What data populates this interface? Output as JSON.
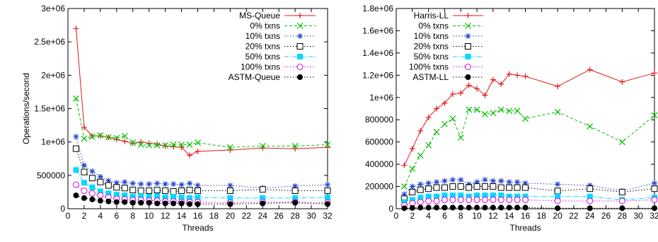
{
  "chart_data": [
    {
      "type": "line",
      "xlabel": "Threads",
      "ylabel": "Operations/second",
      "xlim": [
        0,
        32
      ],
      "ylim": [
        0,
        3000000
      ],
      "x_ticks": [
        "0",
        "2",
        "4",
        "6",
        "8",
        "10",
        "12",
        "14",
        "16",
        "18",
        "20",
        "22",
        "24",
        "26",
        "28",
        "30",
        "32"
      ],
      "y_ticks": [
        "0",
        "500000",
        "1e+06",
        "1.5e+06",
        "2e+06",
        "2.5e+06",
        "3e+06"
      ],
      "legend_position": "top-right",
      "grid": false,
      "x": [
        1,
        2,
        3,
        4,
        5,
        6,
        7,
        8,
        9,
        10,
        11,
        12,
        13,
        14,
        15,
        16,
        20,
        24,
        28,
        32
      ],
      "series": [
        {
          "name": "MS-Queue",
          "color": "#e41a1c",
          "marker": "plus",
          "dash": "solid",
          "values": [
            2700000,
            1220000,
            1090000,
            1090000,
            1070000,
            1040000,
            1010000,
            980000,
            1000000,
            980000,
            970000,
            940000,
            930000,
            920000,
            800000,
            860000,
            880000,
            910000,
            900000,
            920000
          ]
        },
        {
          "name": "0% txns",
          "color": "#00c000",
          "marker": "cross",
          "dash": "dashed",
          "values": [
            1650000,
            1050000,
            1080000,
            1100000,
            1070000,
            1060000,
            1090000,
            990000,
            960000,
            950000,
            950000,
            950000,
            960000,
            960000,
            960000,
            990000,
            920000,
            940000,
            940000,
            960000
          ]
        },
        {
          "name": "10% txns",
          "color": "#1f3fd0",
          "marker": "star",
          "dash": "dotted",
          "values": [
            1080000,
            650000,
            560000,
            480000,
            420000,
            390000,
            400000,
            380000,
            370000,
            370000,
            380000,
            370000,
            370000,
            360000,
            380000,
            350000,
            350000,
            310000,
            340000,
            360000
          ]
        },
        {
          "name": "20% txns",
          "color": "#000000",
          "marker": "square-open",
          "dash": "dotted",
          "values": [
            900000,
            550000,
            460000,
            400000,
            350000,
            320000,
            310000,
            280000,
            270000,
            270000,
            280000,
            270000,
            260000,
            270000,
            280000,
            270000,
            270000,
            290000,
            270000,
            270000
          ]
        },
        {
          "name": "50% txns",
          "color": "#00d8ff",
          "marker": "square-filled",
          "dash": "dashdot",
          "values": [
            580000,
            390000,
            320000,
            260000,
            230000,
            210000,
            200000,
            180000,
            190000,
            180000,
            190000,
            170000,
            180000,
            170000,
            160000,
            170000,
            160000,
            160000,
            160000,
            170000
          ]
        },
        {
          "name": "100% txns",
          "color": "#e000e0",
          "marker": "circle-open",
          "dash": "dotted",
          "values": [
            360000,
            270000,
            230000,
            200000,
            170000,
            150000,
            140000,
            130000,
            130000,
            120000,
            120000,
            110000,
            110000,
            100000,
            100000,
            100000,
            90000,
            100000,
            100000,
            90000
          ]
        },
        {
          "name": "ASTM-Queue",
          "color": "#000000",
          "marker": "circle-filled",
          "dash": "dotted",
          "values": [
            200000,
            160000,
            140000,
            120000,
            110000,
            100000,
            100000,
            90000,
            90000,
            90000,
            80000,
            80000,
            80000,
            80000,
            70000,
            70000,
            70000,
            80000,
            90000,
            70000
          ]
        }
      ]
    },
    {
      "type": "line",
      "xlabel": "Threads",
      "ylabel": "",
      "xlim": [
        0,
        32
      ],
      "ylim": [
        0,
        1800000
      ],
      "x_ticks": [
        "0",
        "2",
        "4",
        "6",
        "8",
        "10",
        "12",
        "14",
        "16",
        "18",
        "20",
        "22",
        "24",
        "26",
        "28",
        "30",
        "32"
      ],
      "y_ticks": [
        "0",
        "200000",
        "400000",
        "600000",
        "800000",
        "1e+06",
        "1.2e+06",
        "1.4e+06",
        "1.6e+06",
        "1.8e+06"
      ],
      "legend_position": "top-left",
      "grid": false,
      "x": [
        1,
        2,
        3,
        4,
        5,
        6,
        7,
        8,
        9,
        10,
        11,
        12,
        13,
        14,
        15,
        16,
        20,
        24,
        28,
        32
      ],
      "series": [
        {
          "name": "Harris-LL",
          "color": "#e41a1c",
          "marker": "plus",
          "dash": "solid",
          "values": [
            390000,
            540000,
            700000,
            820000,
            900000,
            950000,
            1030000,
            1040000,
            1110000,
            1080000,
            1020000,
            1160000,
            1120000,
            1210000,
            1200000,
            1190000,
            1100000,
            1250000,
            1140000,
            1220000
          ]
        },
        {
          "name": "0% txns",
          "color": "#00c000",
          "marker": "cross",
          "dash": "dashed",
          "values": [
            200000,
            360000,
            480000,
            570000,
            690000,
            760000,
            810000,
            640000,
            890000,
            890000,
            850000,
            860000,
            890000,
            880000,
            880000,
            810000,
            870000,
            740000,
            600000,
            840000
          ]
        },
        {
          "name": "10% txns",
          "color": "#1f3fd0",
          "marker": "star",
          "dash": "dotted",
          "values": [
            130000,
            200000,
            220000,
            230000,
            240000,
            250000,
            260000,
            260000,
            220000,
            240000,
            260000,
            250000,
            250000,
            240000,
            240000,
            230000,
            220000,
            210000,
            160000,
            230000
          ]
        },
        {
          "name": "20% txns",
          "color": "#000000",
          "marker": "square-open",
          "dash": "dotted",
          "values": [
            90000,
            150000,
            170000,
            180000,
            190000,
            190000,
            200000,
            200000,
            190000,
            200000,
            200000,
            200000,
            190000,
            190000,
            190000,
            190000,
            160000,
            180000,
            150000,
            180000
          ]
        },
        {
          "name": "50% txns",
          "color": "#00d8ff",
          "marker": "square-filled",
          "dash": "dashdot",
          "values": [
            60000,
            80000,
            100000,
            110000,
            110000,
            120000,
            120000,
            120000,
            110000,
            120000,
            120000,
            120000,
            120000,
            110000,
            110000,
            110000,
            110000,
            110000,
            80000,
            100000
          ]
        },
        {
          "name": "100% txns",
          "color": "#e000e0",
          "marker": "circle-open",
          "dash": "dotted",
          "values": [
            30000,
            50000,
            60000,
            70000,
            70000,
            80000,
            80000,
            80000,
            80000,
            80000,
            80000,
            80000,
            80000,
            80000,
            80000,
            80000,
            70000,
            70000,
            70000,
            80000
          ]
        },
        {
          "name": "ASTM-LL",
          "color": "#000000",
          "marker": "circle-filled",
          "dash": "dotted",
          "values": [
            5000,
            8000,
            10000,
            10000,
            10000,
            10000,
            10000,
            10000,
            10000,
            10000,
            10000,
            10000,
            10000,
            10000,
            10000,
            10000,
            5000,
            5000,
            5000,
            5000
          ]
        }
      ]
    }
  ]
}
